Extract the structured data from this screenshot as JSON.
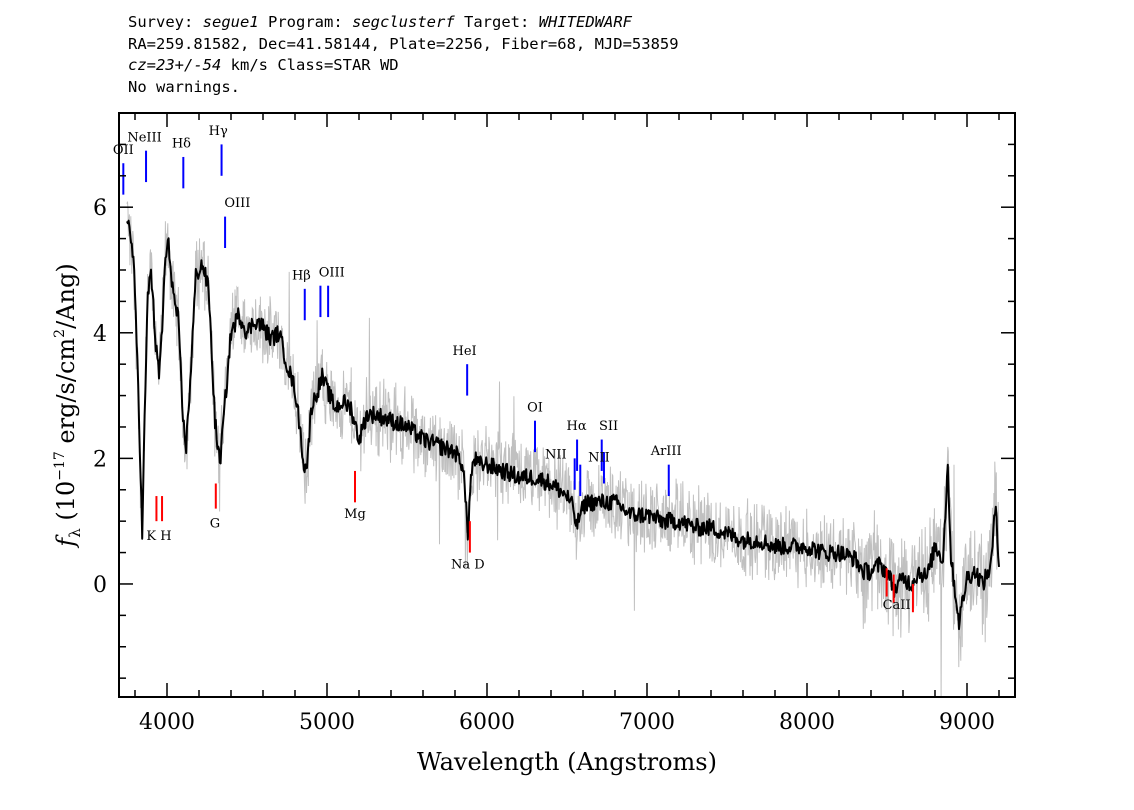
{
  "header": {
    "survey_label": "Survey:",
    "survey": "segue1",
    "program_label": "Program:",
    "program": "segclusterf",
    "target_label": "Target:",
    "target": "WHITEDWARF",
    "line2": "RA=259.81582, Dec=41.58144, Plate=2256, Fiber=68, MJD=53859",
    "cz": "cz=23+/-54",
    "cz_rest": " km/s Class=STAR WD",
    "line4": "No warnings."
  },
  "chart_data": {
    "type": "line",
    "xlabel": "Wavelength (Angstroms)",
    "ylabel_text": "(10^-17 erg/s/cm^2/Ang)",
    "ylabel_symbol": "f",
    "ylabel_subscript": "λ",
    "ylabel_exp": "−17",
    "ylabel_cm": "2",
    "xlim": [
      3700,
      9300
    ],
    "ylim": [
      -1.8,
      7.5
    ],
    "xticks": [
      4000,
      5000,
      6000,
      7000,
      8000,
      9000
    ],
    "xtick_labels": [
      "4000",
      "5000",
      "6000",
      "7000",
      "8000",
      "9000"
    ],
    "yticks": [
      0,
      2,
      4,
      6
    ],
    "ytick_labels": [
      "0",
      "2",
      "4",
      "6"
    ],
    "grid": false,
    "colors": {
      "flux": "#000000",
      "noise": "#c0c0c0",
      "emission": "#0000ff",
      "absorption": "#ff0000"
    },
    "series": [
      {
        "role": "smoothed-flux",
        "x": [
          3750,
          3790,
          3820,
          3845,
          3860,
          3880,
          3900,
          3930,
          3950,
          3970,
          3990,
          4010,
          4040,
          4070,
          4100,
          4120,
          4140,
          4180,
          4220,
          4260,
          4300,
          4330,
          4360,
          4400,
          4450,
          4500,
          4550,
          4600,
          4650,
          4700,
          4750,
          4800,
          4830,
          4860,
          4880,
          4900,
          4930,
          4970,
          5000,
          5050,
          5100,
          5150,
          5200,
          5250,
          5300,
          5400,
          5500,
          5600,
          5700,
          5800,
          5850,
          5880,
          5900,
          5920,
          5950,
          6000,
          6100,
          6200,
          6300,
          6400,
          6500,
          6540,
          6560,
          6580,
          6620,
          6700,
          6800,
          6900,
          7000,
          7100,
          7200,
          7300,
          7400,
          7500,
          7600,
          7700,
          7800,
          7900,
          8000,
          8100,
          8200,
          8300,
          8350,
          8400,
          8450,
          8500,
          8550,
          8600,
          8650,
          8700,
          8750,
          8800,
          8850,
          8880,
          8900,
          8920,
          8950,
          9000,
          9050,
          9100,
          9150,
          9180,
          9200
        ],
        "y": [
          5.9,
          5.2,
          3.2,
          0.8,
          2.6,
          4.6,
          5.0,
          3.8,
          3.3,
          4.1,
          5.2,
          5.4,
          4.6,
          4.2,
          2.6,
          2.2,
          3.0,
          4.9,
          5.1,
          4.7,
          2.6,
          1.9,
          2.8,
          4.0,
          4.3,
          4.0,
          4.2,
          4.1,
          3.9,
          4.0,
          3.5,
          3.1,
          2.5,
          1.8,
          2.0,
          2.8,
          3.0,
          3.3,
          3.1,
          2.8,
          2.9,
          2.8,
          2.3,
          2.7,
          2.7,
          2.6,
          2.5,
          2.3,
          2.2,
          2.1,
          1.9,
          0.8,
          1.7,
          2.0,
          1.9,
          1.9,
          1.8,
          1.7,
          1.7,
          1.6,
          1.4,
          1.2,
          0.9,
          1.1,
          1.3,
          1.3,
          1.3,
          1.1,
          1.1,
          1.0,
          1.0,
          0.9,
          0.9,
          0.8,
          0.7,
          0.7,
          0.6,
          0.6,
          0.6,
          0.5,
          0.5,
          0.4,
          0.2,
          0.2,
          0.3,
          0.2,
          -0.1,
          0.1,
          0.0,
          0.2,
          0.1,
          0.6,
          0.4,
          1.9,
          0.4,
          0.0,
          -0.6,
          0.1,
          0.2,
          0.0,
          0.3,
          1.3,
          0.3
        ]
      }
    ],
    "emission_lines": [
      {
        "label": "OII",
        "x": 3727,
        "y0": 6.2,
        "y1": 6.7,
        "lx": 3727,
        "ly": 6.85
      },
      {
        "label": "NeIII",
        "x": 3869,
        "y0": 6.4,
        "y1": 6.9,
        "lx": 3860,
        "ly": 7.05
      },
      {
        "label": "Hδ",
        "x": 4102,
        "y0": 6.3,
        "y1": 6.8,
        "lx": 4090,
        "ly": 6.95
      },
      {
        "label": "Hγ",
        "x": 4341,
        "y0": 6.5,
        "y1": 7.0,
        "lx": 4320,
        "ly": 7.15
      },
      {
        "label": "OIII",
        "x": 4363,
        "y0": 5.35,
        "y1": 5.85,
        "lx": 4440,
        "ly": 6.0
      },
      {
        "label": "Hβ",
        "x": 4861,
        "y0": 4.2,
        "y1": 4.7,
        "lx": 4840,
        "ly": 4.85
      },
      {
        "label": "OIII",
        "x": 4959,
        "y0": 4.25,
        "y1": 4.75,
        "lx": 5030,
        "ly": 4.9
      },
      {
        "label": "",
        "x": 5007,
        "y0": 4.25,
        "y1": 4.75,
        "lx": 5007,
        "ly": 4.9
      },
      {
        "label": "HeI",
        "x": 5876,
        "y0": 3.0,
        "y1": 3.5,
        "lx": 5860,
        "ly": 3.65
      },
      {
        "label": "OI",
        "x": 6300,
        "y0": 2.1,
        "y1": 2.6,
        "lx": 6300,
        "ly": 2.75
      },
      {
        "label": "NII",
        "x": 6548,
        "y0": 1.5,
        "y1": 2.0,
        "lx": 6430,
        "ly": 2.0
      },
      {
        "label": "Hα",
        "x": 6563,
        "y0": 1.8,
        "y1": 2.3,
        "lx": 6560,
        "ly": 2.45
      },
      {
        "label": "",
        "x": 6583,
        "y0": 1.4,
        "y1": 1.9,
        "lx": 6583,
        "ly": 2.05
      },
      {
        "label": "SII",
        "x": 6717,
        "y0": 1.8,
        "y1": 2.3,
        "lx": 6760,
        "ly": 2.45
      },
      {
        "label": "NII",
        "x": 6731,
        "y0": 1.6,
        "y1": 2.1,
        "lx": 6700,
        "ly": 1.95
      },
      {
        "label": "ArIII",
        "x": 7136,
        "y0": 1.4,
        "y1": 1.9,
        "lx": 7120,
        "ly": 2.05
      }
    ],
    "absorption_lines": [
      {
        "label": "",
        "x": 3934,
        "y0": 1.0,
        "y1": 1.4,
        "lx": 3934,
        "ly": 0.7
      },
      {
        "label": "K H",
        "x": 3969,
        "y0": 1.0,
        "y1": 1.4,
        "lx": 3950,
        "ly": 0.7
      },
      {
        "label": "G",
        "x": 4305,
        "y0": 1.2,
        "y1": 1.6,
        "lx": 4300,
        "ly": 0.9
      },
      {
        "label": "Mg",
        "x": 5175,
        "y0": 1.3,
        "y1": 1.8,
        "lx": 5175,
        "ly": 1.05
      },
      {
        "label": "Na D",
        "x": 5893,
        "y0": 0.5,
        "y1": 1.0,
        "lx": 5880,
        "ly": 0.25
      },
      {
        "label": "",
        "x": 8498,
        "y0": -0.2,
        "y1": 0.25,
        "lx": 8498,
        "ly": -0.4
      },
      {
        "label": "CaII",
        "x": 8542,
        "y0": -0.3,
        "y1": 0.15,
        "lx": 8560,
        "ly": -0.4
      },
      {
        "label": "",
        "x": 8662,
        "y0": -0.45,
        "y1": 0.0,
        "lx": 8662,
        "ly": -0.4
      }
    ]
  }
}
